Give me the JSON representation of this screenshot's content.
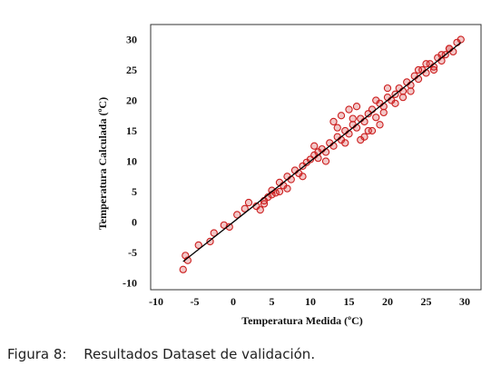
{
  "chart_data": {
    "type": "scatter",
    "xlabel": "Temperatura Medida (ºC)",
    "ylabel": "Temperatura Calculada (ºC)",
    "xlim": [
      -10,
      30
    ],
    "ylim": [
      -10,
      30
    ],
    "x_ticks": [
      "-10",
      "-5",
      "0",
      "5",
      "10",
      "15",
      "20",
      "25",
      "30"
    ],
    "y_ticks": [
      "-10",
      "-5",
      "0",
      "5",
      "10",
      "15",
      "20",
      "25",
      "30"
    ],
    "marker": "open-circle",
    "marker_color": "#cc1f1f",
    "line_color": "#000000",
    "grid": false,
    "reference_line": [
      [
        -6.5,
        -6.5
      ],
      [
        29.5,
        29.5
      ]
    ],
    "x": [
      -6.5,
      -6.2,
      -5.9,
      -4.5,
      -3.0,
      -2.5,
      -1.2,
      -0.5,
      0.5,
      1.5,
      2.0,
      3.0,
      3.5,
      4.0,
      4.5,
      5.0,
      5.5,
      6.0,
      6.5,
      7.0,
      7.5,
      8.0,
      8.5,
      9.0,
      9.5,
      10.0,
      10.5,
      11.0,
      11.5,
      12.0,
      12.5,
      13.0,
      13.5,
      14.0,
      14.5,
      15.0,
      15.5,
      16.0,
      16.5,
      17.0,
      17.5,
      18.0,
      18.5,
      19.0,
      19.5,
      20.0,
      20.5,
      21.0,
      21.5,
      22.0,
      22.5,
      23.0,
      23.5,
      24.0,
      24.5,
      25.0,
      25.5,
      26.0,
      26.5,
      27.0,
      27.5,
      28.0,
      28.5,
      29.0,
      29.5,
      13.0,
      14.0,
      15.0,
      16.0,
      17.0,
      18.0,
      12.0,
      11.0,
      14.5,
      16.5,
      19.0,
      20.0,
      21.0,
      22.0,
      23.0,
      15.5,
      17.5,
      13.5,
      10.5,
      9.0,
      7.0,
      6.0,
      5.0,
      4.0,
      18.5,
      19.5,
      24.0,
      25.0,
      26.0,
      27.0,
      28.0
    ],
    "y": [
      -7.8,
      -5.5,
      -6.3,
      -3.8,
      -3.2,
      -1.8,
      -0.5,
      -0.8,
      1.2,
      2.2,
      3.2,
      2.6,
      2.0,
      3.5,
      4.1,
      5.2,
      4.8,
      6.5,
      6.0,
      7.5,
      7.0,
      8.5,
      8.0,
      9.2,
      9.8,
      10.3,
      11.0,
      10.5,
      12.0,
      11.5,
      13.0,
      12.5,
      14.0,
      13.5,
      15.0,
      14.5,
      16.0,
      15.5,
      17.0,
      16.5,
      17.8,
      18.5,
      17.2,
      19.5,
      19.0,
      20.5,
      20.0,
      21.0,
      22.0,
      21.5,
      23.0,
      22.5,
      24.0,
      23.5,
      25.0,
      24.5,
      26.0,
      25.5,
      27.0,
      26.5,
      27.5,
      28.5,
      28.0,
      29.5,
      30.0,
      16.5,
      17.5,
      18.5,
      19.0,
      14.0,
      15.0,
      10.0,
      11.5,
      13.0,
      13.5,
      16.0,
      22.0,
      19.5,
      20.5,
      21.5,
      17.0,
      15.0,
      15.5,
      12.5,
      7.5,
      5.5,
      5.0,
      4.5,
      3.0,
      20.0,
      18.0,
      25.0,
      26.0,
      25.0,
      27.5,
      28.5
    ]
  },
  "caption": {
    "label": "Figura 8:",
    "text": "Resultados Dataset de validación."
  }
}
